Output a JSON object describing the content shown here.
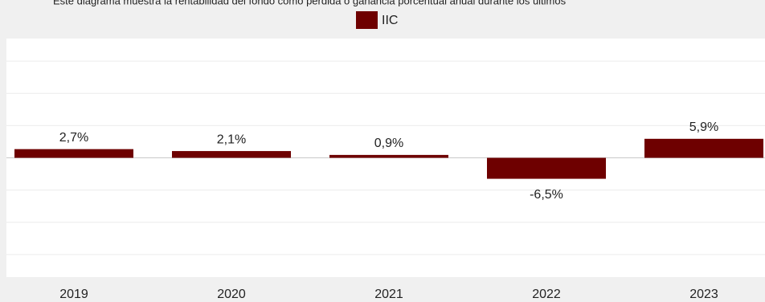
{
  "chart_data": {
    "type": "bar",
    "subtitle": "Este diagrama muestra la rentabilidad del fondo como pérdida o ganancia porcentual anual durante los últimos",
    "categories": [
      "2019",
      "2020",
      "2021",
      "2022",
      "2023"
    ],
    "series": [
      {
        "name": "IIC",
        "color": "#6e0000",
        "values": [
          2.7,
          2.1,
          0.9,
          -6.5,
          5.9
        ],
        "value_labels": [
          "2,7%",
          "2,1%",
          "0,9%",
          "-6,5%",
          "5,9%"
        ]
      }
    ],
    "ylim": [
      -37,
      37
    ],
    "yticks": [
      -30,
      -20,
      -10,
      0,
      10,
      20,
      30
    ],
    "grid": true
  }
}
